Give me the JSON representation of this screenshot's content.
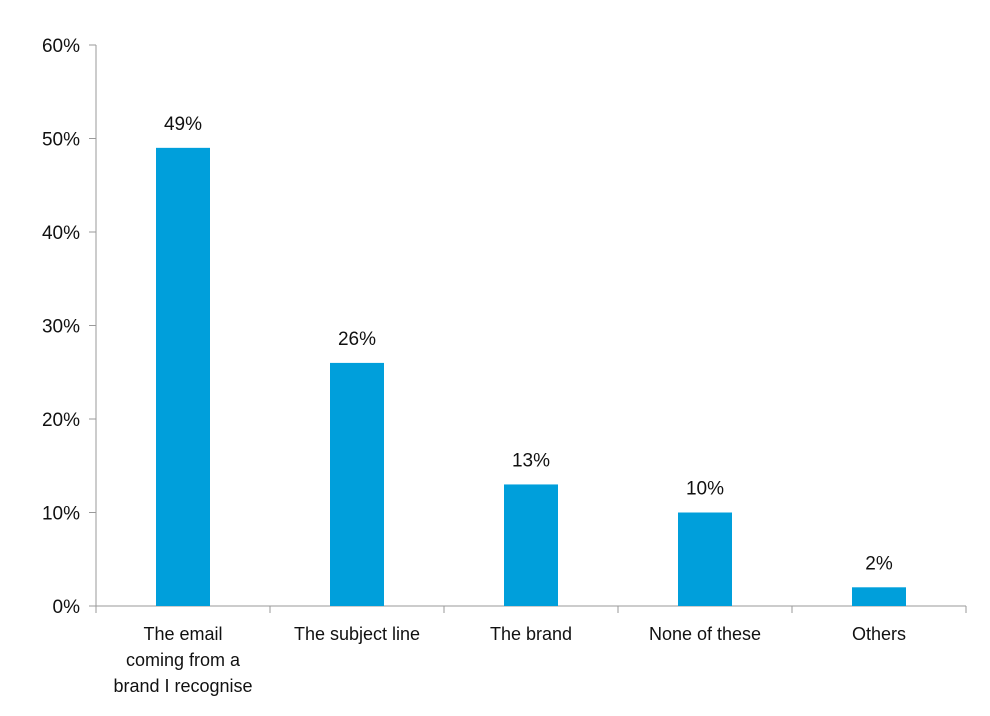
{
  "chart_data": {
    "type": "bar",
    "title": "",
    "xlabel": "",
    "ylabel": "",
    "categories": [
      [
        "The email",
        "coming from a",
        "brand I recognise"
      ],
      [
        "The subject line"
      ],
      [
        "The brand"
      ],
      [
        "None of these"
      ],
      [
        "Others"
      ]
    ],
    "values": [
      49,
      26,
      13,
      10,
      2
    ],
    "data_labels": [
      "49%",
      "26%",
      "13%",
      "10%",
      "2%"
    ],
    "ylim": [
      0,
      60
    ],
    "yticks": [
      0,
      10,
      20,
      30,
      40,
      50,
      60
    ],
    "ytick_labels": [
      "0%",
      "10%",
      "20%",
      "30%",
      "40%",
      "50%",
      "60%"
    ],
    "bar_color": "#009fdb",
    "grid": false,
    "legend": "none"
  }
}
